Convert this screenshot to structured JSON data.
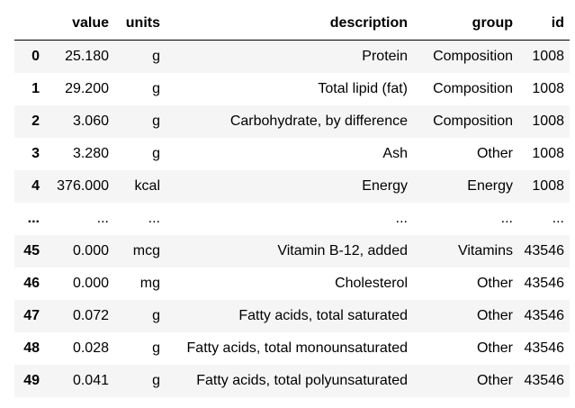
{
  "table": {
    "columns": [
      "",
      "value",
      "units",
      "description",
      "group",
      "id"
    ],
    "rows": [
      [
        "0",
        "25.180",
        "g",
        "Protein",
        "Composition",
        "1008"
      ],
      [
        "1",
        "29.200",
        "g",
        "Total lipid (fat)",
        "Composition",
        "1008"
      ],
      [
        "2",
        "3.060",
        "g",
        "Carbohydrate, by difference",
        "Composition",
        "1008"
      ],
      [
        "3",
        "3.280",
        "g",
        "Ash",
        "Other",
        "1008"
      ],
      [
        "4",
        "376.000",
        "kcal",
        "Energy",
        "Energy",
        "1008"
      ],
      [
        "...",
        "...",
        "...",
        "...",
        "...",
        "..."
      ],
      [
        "45",
        "0.000",
        "mcg",
        "Vitamin B-12, added",
        "Vitamins",
        "43546"
      ],
      [
        "46",
        "0.000",
        "mg",
        "Cholesterol",
        "Other",
        "43546"
      ],
      [
        "47",
        "0.072",
        "g",
        "Fatty acids, total saturated",
        "Other",
        "43546"
      ],
      [
        "48",
        "0.028",
        "g",
        "Fatty acids, total monounsaturated",
        "Other",
        "43546"
      ],
      [
        "49",
        "0.041",
        "g",
        "Fatty acids, total polyunsaturated",
        "Other",
        "43546"
      ]
    ]
  }
}
